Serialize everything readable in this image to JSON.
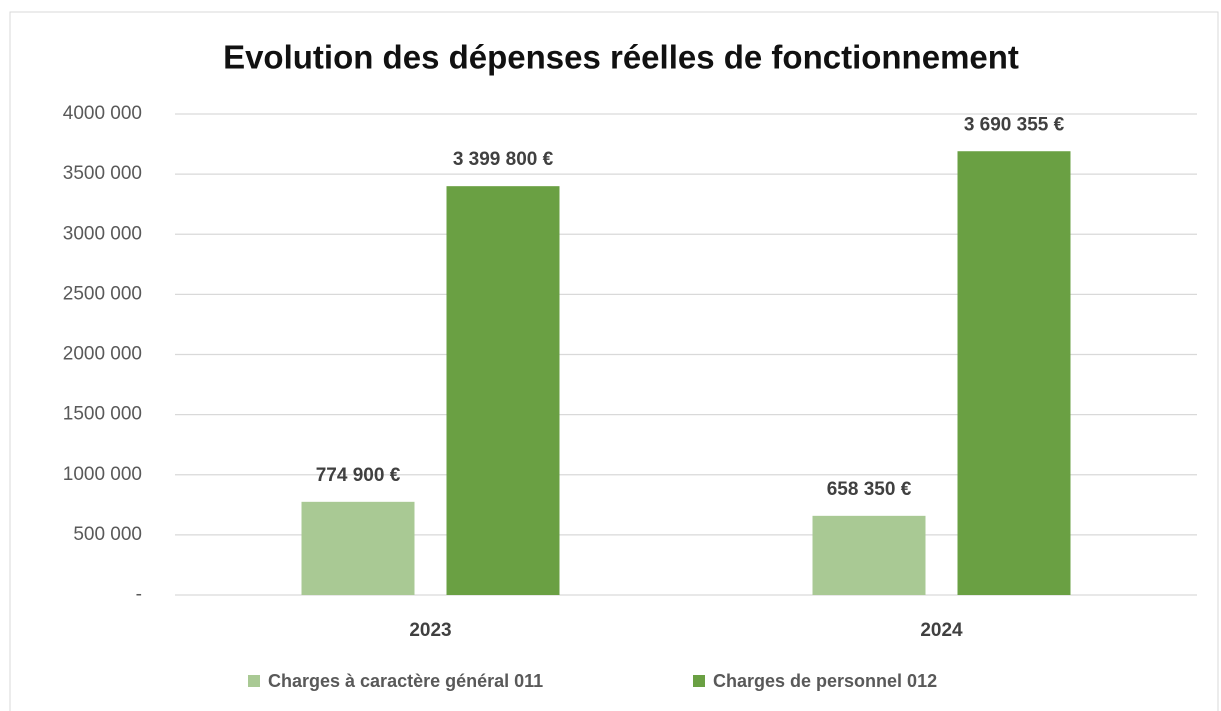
{
  "chart_data": {
    "type": "bar",
    "title": "Evolution des dépenses réelles de fonctionnement",
    "categories": [
      "2023",
      "2024"
    ],
    "series": [
      {
        "name": "Charges à caractère général 011",
        "color": "#a9c994",
        "values": [
          774900,
          658350
        ],
        "value_labels": [
          "774 900 €",
          "658 350 €"
        ]
      },
      {
        "name": "Charges de personnel 012",
        "color": "#6aa043",
        "values": [
          3399800,
          3690355
        ],
        "value_labels": [
          "3 399 800 €",
          "3 690 355 €"
        ]
      }
    ],
    "ylim": [
      0,
      4000000
    ],
    "yticks": [
      {
        "value": 0,
        "label": "-"
      },
      {
        "value": 500000,
        "label": "500 000"
      },
      {
        "value": 1000000,
        "label": "1000 000"
      },
      {
        "value": 1500000,
        "label": "1500 000"
      },
      {
        "value": 2000000,
        "label": "2000 000"
      },
      {
        "value": 2500000,
        "label": "2500 000"
      },
      {
        "value": 3000000,
        "label": "3000 000"
      },
      {
        "value": 3500000,
        "label": "3500 000"
      },
      {
        "value": 4000000,
        "label": "4000 000"
      }
    ],
    "grid": true,
    "legend": "bottom"
  }
}
